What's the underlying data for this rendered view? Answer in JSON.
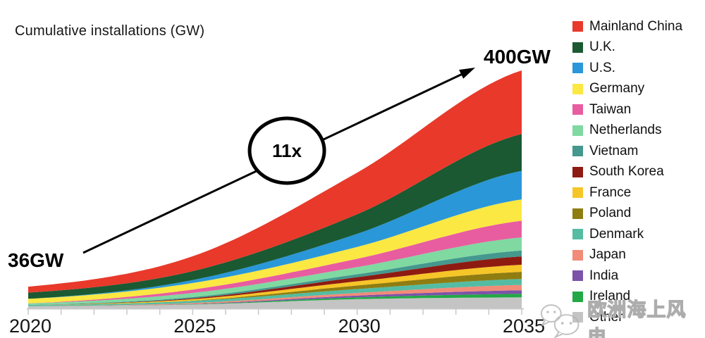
{
  "title": "Cumulative installations (GW)",
  "annotations": {
    "start_label": "36GW",
    "end_label": "400GW",
    "multiplier_label": "11x"
  },
  "watermark": {
    "text": "欧洲海上风电",
    "logo": "wechat-logo"
  },
  "chart_data": {
    "type": "area",
    "stacked": true,
    "title": "Cumulative installations (GW)",
    "xlabel": "",
    "ylabel": "Cumulative installations (GW)",
    "x_range": [
      2020,
      2035
    ],
    "y_range": [
      0,
      400
    ],
    "grid": false,
    "legend_position": "right",
    "x_ticks_every_year": true,
    "x_tick_labels": [
      "2020",
      "2025",
      "2030",
      "2035"
    ],
    "x_tick_label_years": [
      2020,
      2025,
      2030,
      2035
    ],
    "x_keyframes": [
      2020,
      2025,
      2030,
      2035
    ],
    "totals_at_keyframes": [
      36,
      87,
      228,
      400
    ],
    "start_total_gw": 36,
    "end_total_gw": 400,
    "growth_multiplier": "11x",
    "series": [
      {
        "name": "Mainland China",
        "color": "#E8392B",
        "values": [
          10,
          25,
          70,
          107
        ]
      },
      {
        "name": "U.K.",
        "color": "#1A5932",
        "values": [
          10.4,
          15,
          33,
          62
        ]
      },
      {
        "name": "U.S.",
        "color": "#2A97D9",
        "values": [
          0,
          5,
          22,
          48
        ]
      },
      {
        "name": "Germany",
        "color": "#FBE843",
        "values": [
          7.7,
          11,
          20,
          36
        ]
      },
      {
        "name": "Taiwan",
        "color": "#E85D9F",
        "values": [
          0.1,
          5.7,
          14,
          28
        ]
      },
      {
        "name": "Netherlands",
        "color": "#7FD9A1",
        "values": [
          2.6,
          7,
          12,
          22
        ]
      },
      {
        "name": "Vietnam",
        "color": "#44988E",
        "values": [
          0.3,
          2,
          5,
          10
        ]
      },
      {
        "name": "South Korea",
        "color": "#8E1B12",
        "values": [
          0.1,
          1.5,
          7,
          14
        ]
      },
      {
        "name": "France",
        "color": "#F6C527",
        "values": [
          0,
          2.5,
          7,
          12
        ]
      },
      {
        "name": "Poland",
        "color": "#8F7D11",
        "values": [
          0,
          0.5,
          6,
          12
        ]
      },
      {
        "name": "Denmark",
        "color": "#54BCA2",
        "values": [
          1.7,
          3.5,
          6.5,
          10
        ]
      },
      {
        "name": "Japan",
        "color": "#F28B77",
        "values": [
          0.1,
          1.5,
          4.5,
          9
        ]
      },
      {
        "name": "India",
        "color": "#7C53A9",
        "values": [
          0,
          0.5,
          3,
          6
        ]
      },
      {
        "name": "Ireland",
        "color": "#22A945",
        "values": [
          0,
          0.5,
          3,
          6
        ]
      },
      {
        "name": "Other",
        "color": "#C4C4C4",
        "values": [
          3,
          6,
          15,
          18
        ]
      }
    ],
    "axis_color": "#C9C9C9"
  }
}
